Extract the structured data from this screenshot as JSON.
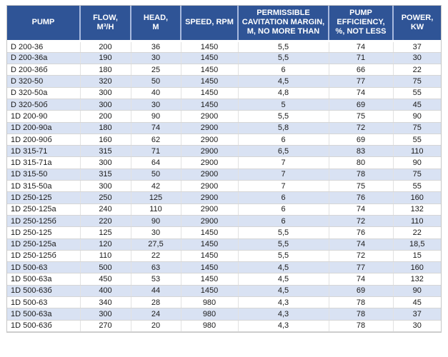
{
  "page": {
    "background": "#FFFFFF"
  },
  "colors": {
    "page_bg": "#FFFFFF",
    "header_bg": "#2F5496",
    "header_text": "#FFFFFF",
    "header_divider": "#A8B9DE",
    "stripe_bg": "#D9E2F3",
    "row_bg": "#FFFFFF",
    "grid_v": "#E2E2E2",
    "grid_h": "#D6D6D6",
    "outer_border": "#C6C6C6",
    "text": "#1A1A1A"
  },
  "chart_data": {
    "type": "table",
    "legend_position": "none",
    "grid": true,
    "columns": [
      {
        "key": "pump",
        "label": "PUMP",
        "display": "PUMP"
      },
      {
        "key": "flow",
        "label": "FLOW, M³/H",
        "display": "FLOW,\nM³/H"
      },
      {
        "key": "head",
        "label": "HEAD, M",
        "display": "HEAD,\nM"
      },
      {
        "key": "speed",
        "label": "SPEED, RPM",
        "display": "SPEED, RPM"
      },
      {
        "key": "cavitation-margin",
        "label": "PERMISSIBLE CAVITATION MARGIN, M, NO MORE THAN",
        "display": "PERMISSIBLE\nCAVITATION MARGIN,\nM, NO MORE THAN"
      },
      {
        "key": "efficiency",
        "label": "PUMP EFFICIENCY, %, NOT LESS",
        "display": "PUMP\nEFFICIENCY,\n%, NOT LESS"
      },
      {
        "key": "power",
        "label": "POWER, KW",
        "display": "POWER,\nKW"
      }
    ],
    "rows": [
      [
        "D 200-36",
        "200",
        "36",
        "1450",
        "5,5",
        "74",
        "37"
      ],
      [
        "D 200-36a",
        "190",
        "30",
        "1450",
        "5,5",
        "71",
        "30"
      ],
      [
        "D 200-36б",
        "180",
        "25",
        "1450",
        "6",
        "66",
        "22"
      ],
      [
        "D 320-50",
        "320",
        "50",
        "1450",
        "4,5",
        "77",
        "75"
      ],
      [
        "D 320-50a",
        "300",
        "40",
        "1450",
        "4,8",
        "74",
        "55"
      ],
      [
        "D 320-50б",
        "300",
        "30",
        "1450",
        "5",
        "69",
        "45"
      ],
      [
        "1D 200-90",
        "200",
        "90",
        "2900",
        "5,5",
        "75",
        "90"
      ],
      [
        "1D 200-90a",
        "180",
        "74",
        "2900",
        "5,8",
        "72",
        "75"
      ],
      [
        "1D 200-90б",
        "160",
        "62",
        "2900",
        "6",
        "69",
        "55"
      ],
      [
        "1D 315-71",
        "315",
        "71",
        "2900",
        "6,5",
        "83",
        "110"
      ],
      [
        "1D 315-71a",
        "300",
        "64",
        "2900",
        "7",
        "80",
        "90"
      ],
      [
        "1D 315-50",
        "315",
        "50",
        "2900",
        "7",
        "78",
        "75"
      ],
      [
        "1D 315-50a",
        "300",
        "42",
        "2900",
        "7",
        "75",
        "55"
      ],
      [
        "1D 250-125",
        "250",
        "125",
        "2900",
        "6",
        "76",
        "160"
      ],
      [
        "1D 250-125a",
        "240",
        "110",
        "2900",
        "6",
        "74",
        "132"
      ],
      [
        "1D 250-125б",
        "220",
        "90",
        "2900",
        "6",
        "72",
        "110"
      ],
      [
        "1D 250-125",
        "125",
        "30",
        "1450",
        "5,5",
        "76",
        "22"
      ],
      [
        "1D 250-125a",
        "120",
        "27,5",
        "1450",
        "5,5",
        "74",
        "18,5"
      ],
      [
        "1D 250-125б",
        "110",
        "22",
        "1450",
        "5,5",
        "72",
        "15"
      ],
      [
        "1D 500-63",
        "500",
        "63",
        "1450",
        "4,5",
        "77",
        "160"
      ],
      [
        "1D 500-63a",
        "450",
        "53",
        "1450",
        "4,5",
        "74",
        "132"
      ],
      [
        "1D 500-63б",
        "400",
        "44",
        "1450",
        "4,5",
        "69",
        "90"
      ],
      [
        "1D 500-63",
        "340",
        "28",
        "980",
        "4,3",
        "78",
        "45"
      ],
      [
        "1D 500-63a",
        "300",
        "24",
        "980",
        "4,3",
        "78",
        "37"
      ],
      [
        "1D 500-63б",
        "270",
        "20",
        "980",
        "4,3",
        "78",
        "30"
      ]
    ]
  }
}
